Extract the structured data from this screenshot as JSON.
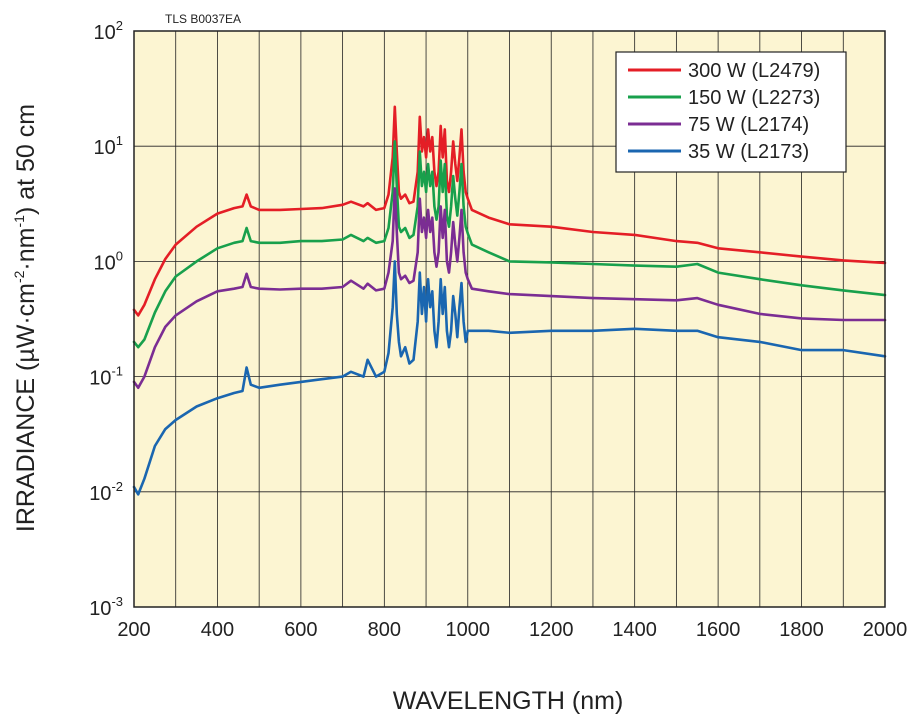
{
  "chart_data": {
    "type": "line",
    "code_label": "TLS B0037EA",
    "xlabel": "WAVELENGTH (nm)",
    "ylabel_parts": [
      "IRRADIANCE (µW·cm",
      "-2",
      "·nm",
      "-1",
      ") at 50 cm"
    ],
    "xlim": [
      200,
      2000
    ],
    "ylim": [
      0.001,
      100
    ],
    "yscale": "log",
    "grid": true,
    "background": "#fcf5d2",
    "xticks": [
      "200",
      "400",
      "600",
      "800",
      "1000",
      "1200",
      "1400",
      "1600",
      "1800",
      "2000"
    ],
    "yticks": [
      {
        "base": "10",
        "exp": "2"
      },
      {
        "base": "10",
        "exp": "1"
      },
      {
        "base": "10",
        "exp": "0"
      },
      {
        "base": "10",
        "exp": "-1"
      },
      {
        "base": "10",
        "exp": "-2"
      },
      {
        "base": "10",
        "exp": "-3"
      }
    ],
    "legend_position": "top-right",
    "series": [
      {
        "name": "300 W (L2479)",
        "color": "#e41e26",
        "x": [
          200,
          210,
          225,
          250,
          275,
          300,
          350,
          400,
          440,
          460,
          470,
          480,
          500,
          550,
          600,
          650,
          700,
          720,
          750,
          760,
          780,
          800,
          810,
          820,
          825,
          830,
          835,
          840,
          850,
          860,
          870,
          880,
          885,
          890,
          895,
          900,
          905,
          910,
          915,
          920,
          925,
          930,
          935,
          940,
          945,
          950,
          955,
          960,
          965,
          970,
          975,
          980,
          985,
          990,
          995,
          1000,
          1010,
          1050,
          1100,
          1200,
          1300,
          1400,
          1500,
          1550,
          1600,
          1700,
          1800,
          1900,
          2000
        ],
        "y": [
          0.38,
          0.34,
          0.42,
          0.7,
          1.05,
          1.4,
          2.0,
          2.6,
          2.9,
          3.0,
          3.8,
          3.0,
          2.8,
          2.8,
          2.85,
          2.9,
          3.1,
          3.3,
          3.0,
          3.2,
          2.8,
          2.9,
          3.8,
          8.0,
          22.0,
          9.0,
          4.0,
          3.5,
          3.8,
          3.2,
          3.3,
          6.0,
          18.0,
          9.0,
          12.0,
          8.0,
          14.0,
          9.0,
          12.0,
          6.0,
          4.5,
          6.0,
          15.0,
          8.0,
          14.0,
          5.0,
          4.0,
          6.0,
          11.0,
          7.0,
          5.0,
          8.0,
          14.0,
          6.0,
          4.0,
          3.5,
          2.8,
          2.4,
          2.1,
          2.0,
          1.8,
          1.7,
          1.5,
          1.45,
          1.3,
          1.2,
          1.1,
          1.02,
          0.97
        ]
      },
      {
        "name": "150 W (L2273)",
        "color": "#18a04c",
        "x": [
          200,
          210,
          225,
          250,
          275,
          300,
          350,
          400,
          440,
          460,
          470,
          480,
          500,
          550,
          600,
          650,
          700,
          720,
          750,
          760,
          780,
          800,
          810,
          820,
          825,
          830,
          835,
          840,
          850,
          860,
          870,
          880,
          885,
          890,
          895,
          900,
          905,
          910,
          915,
          920,
          925,
          930,
          935,
          940,
          945,
          950,
          955,
          960,
          965,
          970,
          975,
          980,
          985,
          990,
          995,
          1000,
          1010,
          1050,
          1100,
          1200,
          1300,
          1400,
          1500,
          1550,
          1600,
          1700,
          1800,
          1900,
          2000
        ],
        "y": [
          0.2,
          0.18,
          0.21,
          0.36,
          0.55,
          0.74,
          1.0,
          1.3,
          1.45,
          1.5,
          1.95,
          1.5,
          1.45,
          1.45,
          1.5,
          1.5,
          1.55,
          1.7,
          1.5,
          1.6,
          1.45,
          1.5,
          1.95,
          4.0,
          11.0,
          4.5,
          2.0,
          1.8,
          1.95,
          1.6,
          1.7,
          3.0,
          9.0,
          4.5,
          6.0,
          4.0,
          7.0,
          4.5,
          6.0,
          3.0,
          2.3,
          3.0,
          7.5,
          4.0,
          7.0,
          2.5,
          2.0,
          3.0,
          5.5,
          3.5,
          2.5,
          4.0,
          7.0,
          3.0,
          2.0,
          1.75,
          1.4,
          1.2,
          1.0,
          0.98,
          0.95,
          0.92,
          0.9,
          0.95,
          0.8,
          0.7,
          0.62,
          0.56,
          0.51
        ]
      },
      {
        "name": "75 W (L2174)",
        "color": "#7b2d93",
        "x": [
          200,
          210,
          225,
          250,
          275,
          300,
          350,
          400,
          440,
          460,
          470,
          480,
          500,
          550,
          600,
          650,
          700,
          720,
          750,
          760,
          780,
          800,
          810,
          820,
          825,
          830,
          835,
          840,
          850,
          860,
          870,
          880,
          885,
          890,
          895,
          900,
          905,
          910,
          915,
          920,
          925,
          930,
          935,
          940,
          945,
          950,
          955,
          960,
          965,
          970,
          975,
          980,
          985,
          990,
          995,
          1000,
          1010,
          1050,
          1100,
          1200,
          1300,
          1400,
          1500,
          1550,
          1600,
          1700,
          1800,
          1900,
          2000
        ],
        "y": [
          0.09,
          0.08,
          0.1,
          0.18,
          0.27,
          0.34,
          0.45,
          0.55,
          0.58,
          0.6,
          0.78,
          0.6,
          0.58,
          0.57,
          0.58,
          0.58,
          0.6,
          0.68,
          0.58,
          0.64,
          0.56,
          0.58,
          0.8,
          1.5,
          4.3,
          1.8,
          0.8,
          0.7,
          0.75,
          0.65,
          0.68,
          1.2,
          3.5,
          1.8,
          2.4,
          1.6,
          2.8,
          1.8,
          2.4,
          1.2,
          0.9,
          1.2,
          3.0,
          1.6,
          2.8,
          1.0,
          0.8,
          1.2,
          2.2,
          1.4,
          1.0,
          1.6,
          2.8,
          1.2,
          0.8,
          0.7,
          0.58,
          0.55,
          0.52,
          0.5,
          0.48,
          0.47,
          0.46,
          0.48,
          0.42,
          0.35,
          0.32,
          0.31,
          0.31
        ]
      },
      {
        "name": "35 W (L2173)",
        "color": "#1a66b0",
        "x": [
          200,
          210,
          225,
          250,
          275,
          300,
          350,
          400,
          440,
          460,
          470,
          480,
          500,
          550,
          600,
          650,
          700,
          720,
          750,
          760,
          780,
          800,
          810,
          820,
          825,
          830,
          835,
          840,
          850,
          860,
          870,
          880,
          885,
          890,
          895,
          900,
          905,
          910,
          915,
          920,
          925,
          930,
          935,
          940,
          945,
          950,
          955,
          960,
          965,
          970,
          975,
          980,
          985,
          990,
          995,
          1000,
          1010,
          1050,
          1100,
          1200,
          1300,
          1400,
          1500,
          1550,
          1600,
          1700,
          1800,
          1900,
          2000
        ],
        "y": [
          0.011,
          0.0095,
          0.013,
          0.025,
          0.035,
          0.042,
          0.055,
          0.065,
          0.072,
          0.075,
          0.12,
          0.085,
          0.08,
          0.085,
          0.09,
          0.095,
          0.1,
          0.11,
          0.1,
          0.14,
          0.1,
          0.11,
          0.16,
          0.4,
          1.0,
          0.35,
          0.2,
          0.15,
          0.18,
          0.13,
          0.14,
          0.3,
          0.8,
          0.35,
          0.6,
          0.3,
          0.7,
          0.4,
          0.55,
          0.25,
          0.18,
          0.3,
          0.7,
          0.35,
          0.6,
          0.25,
          0.18,
          0.25,
          0.5,
          0.35,
          0.22,
          0.4,
          0.65,
          0.3,
          0.2,
          0.25,
          0.25,
          0.25,
          0.24,
          0.25,
          0.25,
          0.26,
          0.25,
          0.25,
          0.22,
          0.2,
          0.17,
          0.17,
          0.15
        ]
      }
    ]
  }
}
